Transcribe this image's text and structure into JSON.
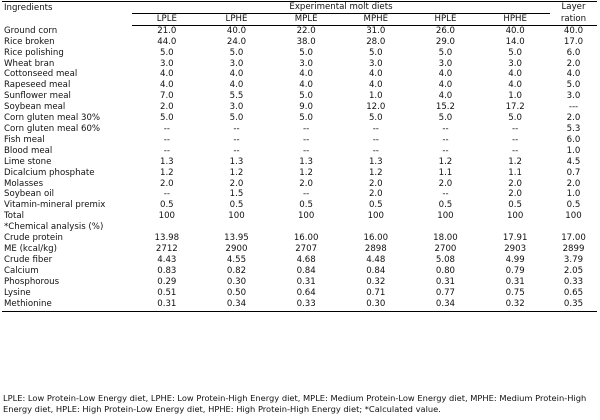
{
  "table": {
    "ingredients_header": "Ingredients",
    "group_header": "Experimental molt diets",
    "layer_header_line1": "Layer",
    "layer_header_line2": "ration",
    "columns": [
      "LPLE",
      "LPHE",
      "MPLE",
      "MPHE",
      "HPLE",
      "HPHE"
    ],
    "rows": [
      {
        "name": "Ground corn",
        "values": [
          "21.0",
          "40.0",
          "22.0",
          "31.0",
          "26.0",
          "40.0",
          "40.0"
        ]
      },
      {
        "name": "Rice broken",
        "values": [
          "44.0",
          "24.0",
          "38.0",
          "28.0",
          "29.0",
          "14.0",
          "17.0"
        ]
      },
      {
        "name": "Rice polishing",
        "values": [
          "5.0",
          "5.0",
          "5.0",
          "5.0",
          "5.0",
          "5.0",
          "6.0"
        ]
      },
      {
        "name": "Wheat bran",
        "values": [
          "3.0",
          "3.0",
          "3.0",
          "3.0",
          "3.0",
          "3.0",
          "2.0"
        ]
      },
      {
        "name": "Cottonseed meal",
        "values": [
          "4.0",
          "4.0",
          "4.0",
          "4.0",
          "4.0",
          "4.0",
          "4.0"
        ]
      },
      {
        "name": "Rapeseed meal",
        "values": [
          "4.0",
          "4.0",
          "4.0",
          "4.0",
          "4.0",
          "4.0",
          "5.0"
        ]
      },
      {
        "name": "Sunflower meal",
        "values": [
          "7.0",
          "5.5",
          "5.0",
          "1.0",
          "4.0",
          "1.0",
          "3.0"
        ]
      },
      {
        "name": "Soybean meal",
        "values": [
          "2.0",
          "3.0",
          "9.0",
          "12.0",
          "15.2",
          "17.2",
          "---"
        ]
      },
      {
        "name": "Corn gluten meal 30%",
        "values": [
          "5.0",
          "5.0",
          "5.0",
          "5.0",
          "5.0",
          "5.0",
          "2.0"
        ]
      },
      {
        "name": "Corn gluten meal 60%",
        "values": [
          "--",
          "--",
          "--",
          "--",
          "--",
          "--",
          "5.3"
        ]
      },
      {
        "name": "Fish meal",
        "values": [
          "--",
          "--",
          "--",
          "--",
          "--",
          "--",
          "6.0"
        ]
      },
      {
        "name": "Blood meal",
        "values": [
          "--",
          "--",
          "--",
          "--",
          "--",
          "--",
          "1.0"
        ]
      },
      {
        "name": "Lime stone",
        "values": [
          "1.3",
          "1.3",
          "1.3",
          "1.3",
          "1.2",
          "1.2",
          "4.5"
        ]
      },
      {
        "name": "Dicalcium phosphate",
        "values": [
          "1.2",
          "1.2",
          "1.2",
          "1.2",
          "1.1",
          "1.1",
          "0.7"
        ]
      },
      {
        "name": "Molasses",
        "values": [
          "2.0",
          "2.0",
          "2.0",
          "2.0",
          "2.0",
          "2.0",
          "2.0"
        ]
      },
      {
        "name": "Soybean oil",
        "values": [
          "--",
          "1.5",
          "--",
          "2.0",
          "--",
          "2.0",
          "1.0"
        ]
      },
      {
        "name": "Vitamin-mineral premix",
        "values": [
          "0.5",
          "0.5",
          "0.5",
          "0.5",
          "0.5",
          "0.5",
          "0.5"
        ]
      },
      {
        "name": "Total",
        "values": [
          "100",
          "100",
          "100",
          "100",
          "100",
          "100",
          "100"
        ]
      },
      {
        "name": "*Chemical analysis (%)",
        "values": [
          "",
          "",
          "",
          "",
          "",
          "",
          ""
        ]
      },
      {
        "name": "Crude protein",
        "values": [
          "13.98",
          "13.95",
          "16.00",
          "16.00",
          "18.00",
          "17.91",
          "17.00"
        ]
      },
      {
        "name": "ME (kcal/kg)",
        "values": [
          "2712",
          "2900",
          "2707",
          "2898",
          "2700",
          "2903",
          "2899"
        ]
      },
      {
        "name": "Crude fiber",
        "values": [
          "4.43",
          "4.55",
          "4.68",
          "4.48",
          "5.08",
          "4.99",
          "3.79"
        ]
      },
      {
        "name": "Calcium",
        "values": [
          "0.83",
          "0.82",
          "0.84",
          "0.84",
          "0.80",
          "0.79",
          "2.05"
        ]
      },
      {
        "name": "Phosphorous",
        "values": [
          "0.29",
          "0.30",
          "0.31",
          "0.32",
          "0.31",
          "0.31",
          "0.33"
        ]
      },
      {
        "name": "Lysine",
        "values": [
          "0.51",
          "0.50",
          "0.64",
          "0.71",
          "0.77",
          "0.75",
          "0.65"
        ],
        "big": true
      },
      {
        "name": "Methionine",
        "values": [
          "0.31",
          "0.34",
          "0.33",
          "0.30",
          "0.34",
          "0.32",
          "0.35"
        ],
        "big": true
      }
    ]
  },
  "footnote": "LPLE: Low Protein-Low Energy diet, LPHE: Low Protein-High Energy diet, MPLE: Medium Protein-Low Energy diet, MPHE: Medium Protein-High Energy diet, HPLE: High Protein-Low Energy diet, HPHE: High Protein-High Energy diet; *Calculated value."
}
